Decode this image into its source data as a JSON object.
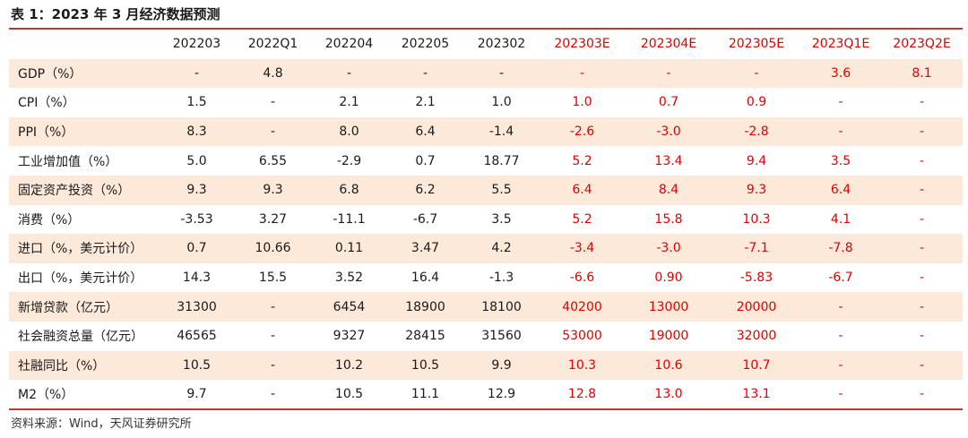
{
  "title": "表 1：2023 年 3 月经济数据预测",
  "colors": {
    "forecast": "#e10000",
    "rule": "#c0392b",
    "shade": "#fce9d9"
  },
  "columns": [
    "202203",
    "2022Q1",
    "202204",
    "202205",
    "202302",
    "202303E",
    "202304E",
    "202305E",
    "2023Q1E",
    "2023Q2E"
  ],
  "rows": [
    {
      "label": "GDP（%）",
      "values": [
        "-",
        "4.8",
        "-",
        "-",
        "-",
        "-",
        "-",
        "-",
        "3.6",
        "8.1"
      ]
    },
    {
      "label": "CPI（%）",
      "values": [
        "1.5",
        "-",
        "2.1",
        "2.1",
        "1.0",
        "1.0",
        "0.7",
        "0.9",
        "-",
        "-"
      ]
    },
    {
      "label": "PPI（%）",
      "values": [
        "8.3",
        "-",
        "8.0",
        "6.4",
        "-1.4",
        "-2.6",
        "-3.0",
        "-2.8",
        "-",
        "-"
      ]
    },
    {
      "label": "工业增加值（%）",
      "values": [
        "5.0",
        "6.55",
        "-2.9",
        "0.7",
        "18.77",
        "5.2",
        "13.4",
        "9.4",
        "3.5",
        "-"
      ]
    },
    {
      "label": "固定资产投资（%）",
      "values": [
        "9.3",
        "9.3",
        "6.8",
        "6.2",
        "5.5",
        "6.4",
        "8.4",
        "9.3",
        "6.4",
        "-"
      ]
    },
    {
      "label": "消费（%）",
      "values": [
        "-3.53",
        "3.27",
        "-11.1",
        "-6.7",
        "3.5",
        "5.2",
        "15.8",
        "10.3",
        "4.1",
        "-"
      ]
    },
    {
      "label": "进口（%，美元计价）",
      "values": [
        "0.7",
        "10.66",
        "0.11",
        "3.47",
        "4.2",
        "-3.4",
        "-3.0",
        "-7.1",
        "-7.8",
        "-"
      ]
    },
    {
      "label": "出口（%，美元计价）",
      "values": [
        "14.3",
        "15.5",
        "3.52",
        "16.4",
        "-1.3",
        "-6.6",
        "0.90",
        "-5.83",
        "-6.7",
        "-"
      ]
    },
    {
      "label": "新增贷款（亿元）",
      "values": [
        "31300",
        "-",
        "6454",
        "18900",
        "18100",
        "40200",
        "13000",
        "20000",
        "-",
        "-"
      ]
    },
    {
      "label": "社会融资总量（亿元）",
      "values": [
        "46565",
        "-",
        "9327",
        "28415",
        "31560",
        "53000",
        "19000",
        "32000",
        "-",
        "-"
      ]
    },
    {
      "label": "社融同比（%）",
      "values": [
        "10.5",
        "-",
        "10.2",
        "10.5",
        "9.9",
        "10.3",
        "10.6",
        "10.7",
        "-",
        "-"
      ]
    },
    {
      "label": "M2（%）",
      "values": [
        "9.7",
        "-",
        "10.5",
        "11.1",
        "12.9",
        "12.8",
        "13.0",
        "13.1",
        "-",
        "-"
      ]
    }
  ],
  "source": "资料来源：Wind，天风证券研究所"
}
